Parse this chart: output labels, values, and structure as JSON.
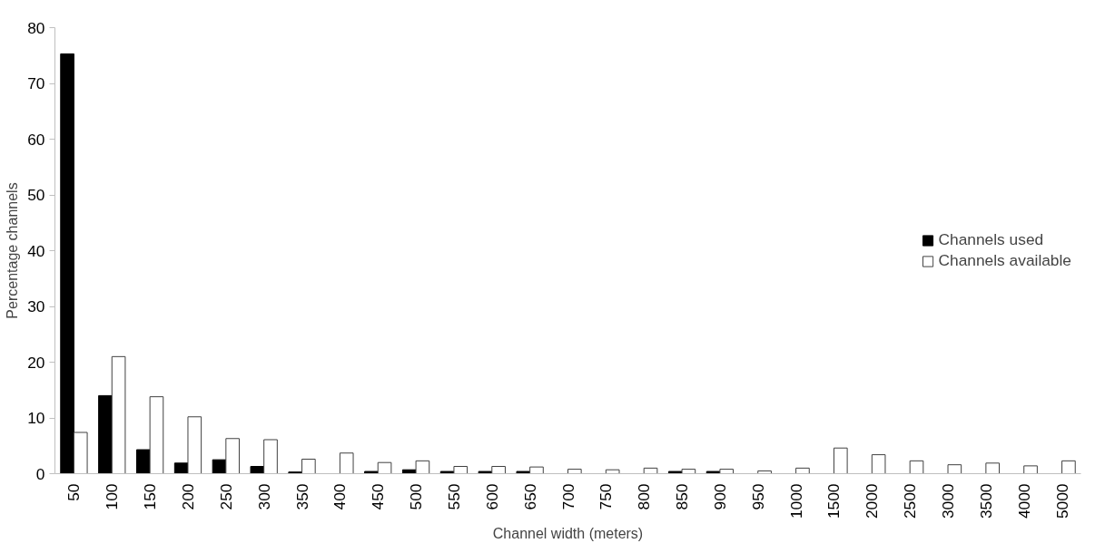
{
  "chart_data": {
    "type": "bar",
    "xlabel": "Channel width (meters)",
    "ylabel": "Percentage channels",
    "categories": [
      "50",
      "100",
      "150",
      "200",
      "250",
      "300",
      "350",
      "400",
      "450",
      "500",
      "550",
      "600",
      "650",
      "700",
      "750",
      "800",
      "850",
      "900",
      "950",
      "1000",
      "1500",
      "2000",
      "2500",
      "3000",
      "3500",
      "4000",
      "5000"
    ],
    "series": [
      {
        "name": "Channels used",
        "color": "#000000",
        "values": [
          75.3,
          14,
          4.3,
          1.9,
          2.5,
          1.3,
          0.3,
          0,
          0.4,
          0.7,
          0.4,
          0.4,
          0.4,
          0,
          0,
          0,
          0.4,
          0.4,
          0,
          0,
          0,
          0,
          0,
          0,
          0,
          0,
          0
        ]
      },
      {
        "name": "Channels available",
        "color": "#ffffff",
        "values": [
          7.4,
          21,
          13.8,
          10.2,
          6.3,
          6.1,
          2.6,
          3.7,
          2.0,
          2.3,
          1.3,
          1.3,
          1.2,
          0.8,
          0.7,
          1.0,
          0.8,
          0.8,
          0.5,
          1.0,
          4.6,
          3.4,
          2.3,
          1.6,
          1.9,
          1.4,
          2.3
        ]
      }
    ],
    "ylim": [
      0,
      80
    ],
    "yticks": [
      0,
      10,
      20,
      30,
      40,
      50,
      60,
      70,
      80
    ],
    "grid": false,
    "legend": "right"
  }
}
